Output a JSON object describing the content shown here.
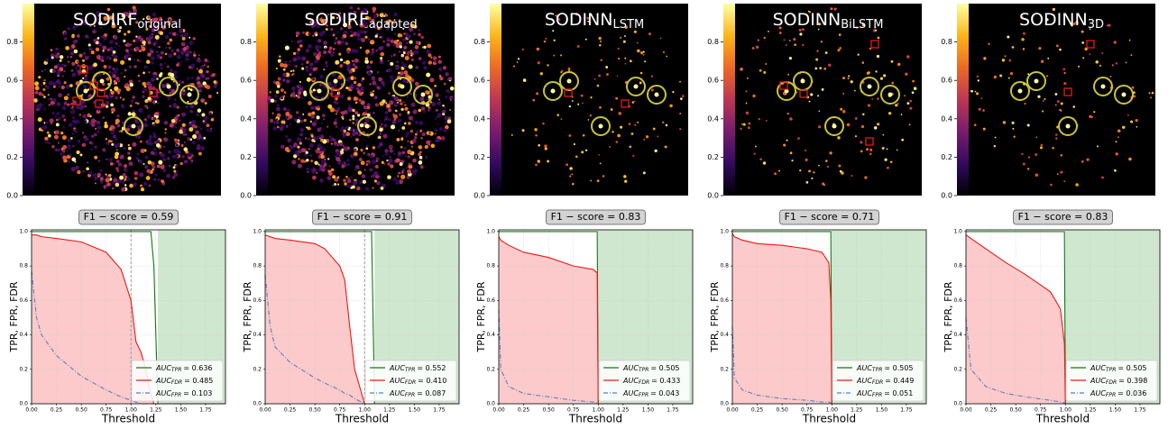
{
  "chart_data": [
    {
      "type": "image",
      "title": "SODIRF",
      "title_sub": "original",
      "colormap": "inferno",
      "clim": [
        0,
        1.0
      ],
      "cbar_ticks": [
        {
          "value": 0,
          "label": "0.0"
        },
        0.2,
        0.4,
        0.6,
        0.8
      ]
    },
    {
      "type": "image",
      "title": "SODIRF",
      "title_sub": "adapted",
      "colormap": "inferno",
      "clim": [
        0,
        1.0
      ],
      "cbar_ticks": [
        {
          "value": 0,
          "label": "0.0"
        },
        0.2,
        0.4,
        0.6,
        0.8
      ]
    },
    {
      "type": "image",
      "title": "SODINN",
      "title_sub": "LSTM",
      "colormap": "inferno",
      "clim": [
        0,
        1.0
      ],
      "cbar_ticks": [
        {
          "value": 0,
          "label": "0.0"
        },
        0.2,
        0.4,
        0.6,
        0.8
      ]
    },
    {
      "type": "image",
      "title": "SODINN",
      "title_sub": "BiLSTM",
      "colormap": "inferno",
      "clim": [
        0,
        1.0
      ],
      "cbar_ticks": [
        {
          "value": 0,
          "label": "0.0"
        },
        0.2,
        0.4,
        0.6,
        0.8
      ]
    },
    {
      "type": "image",
      "title": "SODINN",
      "title_sub": "3D",
      "colormap": "inferno",
      "clim": [
        0,
        1.0
      ],
      "cbar_ticks": [
        {
          "value": 0,
          "label": "0.0"
        },
        0.2,
        0.4,
        0.6,
        0.8
      ]
    },
    {
      "type": "line",
      "title": "F1 − score = 0.59",
      "x_label": "Threshold",
      "y_label": "TPR, FPR, FDR",
      "xlim": [
        0,
        1.95
      ],
      "ylim": [
        0,
        1.01
      ],
      "xticks": [
        {
          "value": 0,
          "label": "0.00"
        },
        0.25,
        {
          "value": 0.5,
          "label": "0.50"
        },
        0.75,
        {
          "value": 1,
          "label": "1.00"
        },
        1.25,
        {
          "value": 1.5,
          "label": "1.50"
        },
        1.75
      ],
      "yticks": [
        {
          "value": 0,
          "label": "0.0"
        },
        0.2,
        0.4,
        0.6,
        0.8,
        {
          "value": 1,
          "label": "1.0"
        }
      ],
      "grid": true,
      "legend": "lower right",
      "vline": 1.0,
      "x": [
        0,
        0.05,
        0.1,
        0.25,
        0.5,
        0.75,
        0.9,
        1.0,
        1.05,
        1.1,
        1.15,
        1.2,
        1.23,
        1.27,
        1.95
      ],
      "series": [
        {
          "name": "AUC",
          "name_sub": "TPR",
          "name_tail": "= 0.636",
          "color": "#117711",
          "fill": "after",
          "fill_color": "#cfe6cf",
          "values": [
            1,
            1,
            1,
            1,
            1,
            1,
            1,
            1,
            1,
            1,
            1,
            1,
            0.8,
            0,
            0
          ]
        },
        {
          "name": "AUC",
          "name_sub": "FDR",
          "name_tail": "= 0.485",
          "color": "#e8191a",
          "fill": "under",
          "fill_color": "#fccaca",
          "values": [
            0.98,
            0.98,
            0.97,
            0.96,
            0.94,
            0.88,
            0.78,
            0.6,
            0.36,
            0.3,
            0.2,
            0.06,
            0,
            0,
            0
          ]
        },
        {
          "name": "AUC",
          "name_sub": "FPR",
          "name_tail": "= 0.103",
          "color": "#5b7fbf",
          "dash": "dashdot",
          "values": [
            0.77,
            0.5,
            0.4,
            0.28,
            0.16,
            0.08,
            0.04,
            0.02,
            0.01,
            0,
            0,
            0,
            0,
            0,
            0
          ]
        }
      ]
    },
    {
      "type": "line",
      "title": "F1 − score = 0.91",
      "x_label": "Threshold",
      "y_label": "TPR, FPR, FDR",
      "xlim": [
        0,
        1.95
      ],
      "ylim": [
        0,
        1.01
      ],
      "xticks": [
        {
          "value": 0,
          "label": "0.00"
        },
        0.25,
        {
          "value": 0.5,
          "label": "0.50"
        },
        0.75,
        {
          "value": 1,
          "label": "1.00"
        },
        1.25,
        {
          "value": 1.5,
          "label": "1.50"
        },
        1.75
      ],
      "yticks": [
        {
          "value": 0,
          "label": "0.0"
        },
        0.2,
        0.4,
        0.6,
        0.8,
        {
          "value": 1,
          "label": "1.0"
        }
      ],
      "grid": true,
      "legend": "lower right",
      "vline": 1.0,
      "x": [
        0,
        0.05,
        0.1,
        0.25,
        0.5,
        0.6,
        0.75,
        0.8,
        0.85,
        0.9,
        1.0,
        1.07,
        1.1,
        1.95
      ],
      "series": [
        {
          "name": "AUC",
          "name_sub": "TPR",
          "name_tail": "= 0.552",
          "color": "#117711",
          "fill": "after",
          "fill_color": "#cfe6cf",
          "values": [
            1,
            1,
            1,
            1,
            1,
            1,
            1,
            1,
            1,
            1,
            1,
            1,
            0,
            0
          ]
        },
        {
          "name": "AUC",
          "name_sub": "FDR",
          "name_tail": "= 0.410",
          "color": "#e8191a",
          "fill": "under",
          "fill_color": "#fccaca",
          "values": [
            0.98,
            0.97,
            0.96,
            0.95,
            0.93,
            0.9,
            0.8,
            0.72,
            0.45,
            0.2,
            0,
            0,
            0,
            0
          ]
        },
        {
          "name": "AUC",
          "name_sub": "FPR",
          "name_tail": "= 0.087",
          "color": "#5b7fbf",
          "dash": "dashdot",
          "values": [
            0.75,
            0.45,
            0.33,
            0.24,
            0.15,
            0.12,
            0.08,
            0.06,
            0.05,
            0.03,
            0,
            0,
            0,
            0
          ]
        }
      ]
    },
    {
      "type": "line",
      "title": "F1 − score = 0.83",
      "x_label": "Threshold",
      "y_label": "TPR, FPR, FDR",
      "xlim": [
        0,
        1.95
      ],
      "ylim": [
        0,
        1.01
      ],
      "xticks": [
        {
          "value": 0,
          "label": "0.00"
        },
        0.25,
        {
          "value": 0.5,
          "label": "0.50"
        },
        0.75,
        {
          "value": 1,
          "label": "1.00"
        },
        1.25,
        {
          "value": 1.5,
          "label": "1.50"
        },
        1.75
      ],
      "yticks": [
        {
          "value": 0,
          "label": "0.0"
        },
        0.2,
        0.4,
        0.6,
        0.8,
        {
          "value": 1,
          "label": "1.0"
        }
      ],
      "grid": true,
      "legend": "lower right",
      "x": [
        0,
        0.02,
        0.1,
        0.25,
        0.5,
        0.75,
        0.95,
        0.99,
        1.0,
        1.95
      ],
      "series": [
        {
          "name": "AUC",
          "name_sub": "TPR",
          "name_tail": "= 0.505",
          "color": "#117711",
          "fill": "after",
          "fill_color": "#cfe6cf",
          "values": [
            1,
            1,
            1,
            1,
            1,
            1,
            1,
            1,
            0,
            0
          ]
        },
        {
          "name": "AUC",
          "name_sub": "FDR",
          "name_tail": "= 0.433",
          "color": "#e8191a",
          "fill": "under",
          "fill_color": "#fccaca",
          "values": [
            0.97,
            0.95,
            0.92,
            0.88,
            0.85,
            0.8,
            0.78,
            0.76,
            0,
            0
          ]
        },
        {
          "name": "AUC",
          "name_sub": "FPR",
          "name_tail": "= 0.043",
          "color": "#5b7fbf",
          "dash": "dashdot",
          "values": [
            0.55,
            0.2,
            0.1,
            0.06,
            0.04,
            0.02,
            0.01,
            0.005,
            0,
            0
          ]
        }
      ]
    },
    {
      "type": "line",
      "title": "F1 − score = 0.71",
      "x_label": "Threshold",
      "y_label": "TPR, FPR, FDR",
      "xlim": [
        0,
        1.95
      ],
      "ylim": [
        0,
        1.01
      ],
      "xticks": [
        {
          "value": 0,
          "label": "0.00"
        },
        0.25,
        {
          "value": 0.5,
          "label": "0.50"
        },
        0.75,
        {
          "value": 1,
          "label": "1.00"
        },
        1.25,
        {
          "value": 1.5,
          "label": "1.50"
        },
        1.75
      ],
      "yticks": [
        {
          "value": 0,
          "label": "0.0"
        },
        0.2,
        0.4,
        0.6,
        0.8,
        {
          "value": 1,
          "label": "1.0"
        }
      ],
      "grid": true,
      "legend": "lower right",
      "x": [
        0,
        0.02,
        0.1,
        0.25,
        0.5,
        0.75,
        0.9,
        0.97,
        0.99,
        1.0,
        1.95
      ],
      "series": [
        {
          "name": "AUC",
          "name_sub": "TPR",
          "name_tail": "= 0.505",
          "color": "#117711",
          "fill": "after",
          "fill_color": "#cfe6cf",
          "values": [
            1,
            1,
            1,
            1,
            1,
            1,
            1,
            1,
            1,
            0,
            0
          ]
        },
        {
          "name": "AUC",
          "name_sub": "FDR",
          "name_tail": "= 0.449",
          "color": "#e8191a",
          "fill": "under",
          "fill_color": "#fccaca",
          "values": [
            0.99,
            0.97,
            0.95,
            0.93,
            0.92,
            0.9,
            0.88,
            0.82,
            0.6,
            0,
            0
          ]
        },
        {
          "name": "AUC",
          "name_sub": "FPR",
          "name_tail": "= 0.051",
          "color": "#5b7fbf",
          "dash": "dashdot",
          "values": [
            0.45,
            0.15,
            0.08,
            0.05,
            0.03,
            0.02,
            0.01,
            0.01,
            0.005,
            0,
            0
          ]
        }
      ]
    },
    {
      "type": "line",
      "title": "F1 − score = 0.83",
      "x_label": "Threshold",
      "y_label": "TPR, FPR, FDR",
      "xlim": [
        0,
        1.95
      ],
      "ylim": [
        0,
        1.01
      ],
      "xticks": [
        {
          "value": 0,
          "label": "0.00"
        },
        0.25,
        {
          "value": 0.5,
          "label": "0.50"
        },
        0.75,
        {
          "value": 1,
          "label": "1.00"
        },
        1.25,
        {
          "value": 1.5,
          "label": "1.50"
        },
        1.75
      ],
      "yticks": [
        {
          "value": 0,
          "label": "0.0"
        },
        0.2,
        0.4,
        0.6,
        0.8,
        {
          "value": 1,
          "label": "1.0"
        }
      ],
      "grid": true,
      "legend": "lower right",
      "x": [
        0,
        0.05,
        0.2,
        0.4,
        0.6,
        0.85,
        0.95,
        0.99,
        1.0,
        1.95
      ],
      "series": [
        {
          "name": "AUC",
          "name_sub": "TPR",
          "name_tail": "= 0.505",
          "color": "#117711",
          "fill": "after",
          "fill_color": "#cfe6cf",
          "values": [
            1,
            1,
            1,
            1,
            1,
            1,
            1,
            1,
            0,
            0
          ]
        },
        {
          "name": "AUC",
          "name_sub": "FDR",
          "name_tail": "= 0.398",
          "color": "#e8191a",
          "fill": "under",
          "fill_color": "#fccaca",
          "values": [
            0.98,
            0.96,
            0.9,
            0.82,
            0.75,
            0.65,
            0.55,
            0.35,
            0,
            0
          ]
        },
        {
          "name": "AUC",
          "name_sub": "FPR",
          "name_tail": "= 0.036",
          "color": "#5b7fbf",
          "dash": "dashdot",
          "values": [
            0.5,
            0.2,
            0.1,
            0.06,
            0.04,
            0.02,
            0.01,
            0.005,
            0,
            0
          ]
        }
      ]
    }
  ]
}
